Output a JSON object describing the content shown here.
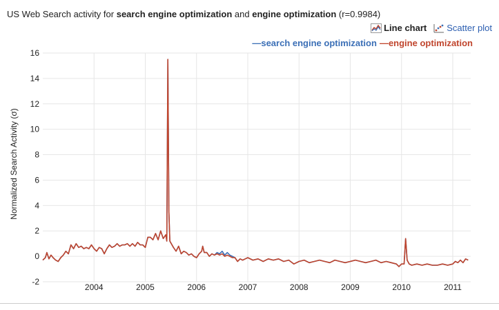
{
  "header": {
    "title_prefix": "US Web Search activity for ",
    "term1": "search engine optimization",
    "title_join": " and ",
    "term2": "engine optimization",
    "title_suffix": " (r=0.9984)"
  },
  "modes": {
    "line_label": "Line chart",
    "scatter_label": "Scatter plot"
  },
  "legend": {
    "series1": "—search engine optimization",
    "series2": "—engine optimization"
  },
  "colors": {
    "series1": "#3b6fb6",
    "series2": "#c0452d",
    "grid": "#e6e6e6"
  },
  "chart_data": {
    "type": "line",
    "title": "US Web Search activity for search engine optimization and engine optimization (r=0.9984)",
    "ylabel": "Normalized Search Activity (σ)",
    "xlabel": "",
    "ylim": [
      -2,
      16
    ],
    "yticks": [
      "-2",
      "0",
      "2",
      "4",
      "6",
      "8",
      "10",
      "12",
      "14",
      "16"
    ],
    "xlim": [
      2003.0,
      2011.35
    ],
    "xticks": [
      {
        "v": 2004,
        "label": "2004"
      },
      {
        "v": 2005,
        "label": "2005"
      },
      {
        "v": 2006,
        "label": "2006"
      },
      {
        "v": 2007,
        "label": "2007"
      },
      {
        "v": 2008,
        "label": "2008"
      },
      {
        "v": 2009,
        "label": "2009"
      },
      {
        "v": 2010,
        "label": "2010"
      },
      {
        "v": 2011,
        "label": "2011"
      }
    ],
    "grid": true,
    "legend_position": "top-right",
    "series": [
      {
        "name": "search engine optimization",
        "points": [
          [
            2003.0,
            -0.3
          ],
          [
            2003.05,
            -0.1
          ],
          [
            2003.08,
            0.3
          ],
          [
            2003.12,
            -0.2
          ],
          [
            2003.16,
            0.1
          ],
          [
            2003.2,
            -0.1
          ],
          [
            2003.25,
            -0.3
          ],
          [
            2003.3,
            -0.4
          ],
          [
            2003.35,
            -0.1
          ],
          [
            2003.4,
            0.1
          ],
          [
            2003.45,
            0.4
          ],
          [
            2003.5,
            0.2
          ],
          [
            2003.55,
            0.9
          ],
          [
            2003.6,
            0.6
          ],
          [
            2003.65,
            1.0
          ],
          [
            2003.7,
            0.7
          ],
          [
            2003.75,
            0.8
          ],
          [
            2003.8,
            0.6
          ],
          [
            2003.85,
            0.7
          ],
          [
            2003.9,
            0.6
          ],
          [
            2003.95,
            0.9
          ],
          [
            2004.0,
            0.6
          ],
          [
            2004.05,
            0.4
          ],
          [
            2004.1,
            0.7
          ],
          [
            2004.15,
            0.6
          ],
          [
            2004.2,
            0.2
          ],
          [
            2004.25,
            0.6
          ],
          [
            2004.3,
            0.9
          ],
          [
            2004.35,
            0.7
          ],
          [
            2004.4,
            0.8
          ],
          [
            2004.45,
            1.0
          ],
          [
            2004.5,
            0.8
          ],
          [
            2004.55,
            0.9
          ],
          [
            2004.6,
            0.9
          ],
          [
            2004.65,
            1.0
          ],
          [
            2004.7,
            0.8
          ],
          [
            2004.75,
            1.0
          ],
          [
            2004.8,
            0.8
          ],
          [
            2004.85,
            1.1
          ],
          [
            2004.9,
            0.9
          ],
          [
            2004.95,
            0.9
          ],
          [
            2005.0,
            0.7
          ],
          [
            2005.05,
            1.5
          ],
          [
            2005.1,
            1.5
          ],
          [
            2005.15,
            1.3
          ],
          [
            2005.2,
            1.8
          ],
          [
            2005.25,
            1.3
          ],
          [
            2005.3,
            2.0
          ],
          [
            2005.35,
            1.4
          ],
          [
            2005.4,
            1.7
          ],
          [
            2005.42,
            1.2
          ],
          [
            2005.44,
            15.5
          ],
          [
            2005.46,
            3.5
          ],
          [
            2005.48,
            1.2
          ],
          [
            2005.55,
            0.7
          ],
          [
            2005.6,
            0.4
          ],
          [
            2005.65,
            0.8
          ],
          [
            2005.7,
            0.2
          ],
          [
            2005.75,
            0.4
          ],
          [
            2005.8,
            0.3
          ],
          [
            2005.85,
            0.1
          ],
          [
            2005.9,
            0.2
          ],
          [
            2005.95,
            0.0
          ],
          [
            2006.0,
            -0.1
          ],
          [
            2006.05,
            0.2
          ],
          [
            2006.1,
            0.4
          ],
          [
            2006.12,
            0.8
          ],
          [
            2006.15,
            0.3
          ],
          [
            2006.2,
            0.3
          ],
          [
            2006.25,
            0.0
          ],
          [
            2006.3,
            0.2
          ],
          [
            2006.35,
            0.1
          ],
          [
            2006.4,
            0.3
          ],
          [
            2006.45,
            0.2
          ],
          [
            2006.5,
            0.4
          ],
          [
            2006.55,
            0.1
          ],
          [
            2006.6,
            0.3
          ],
          [
            2006.65,
            0.1
          ],
          [
            2006.7,
            0.0
          ],
          [
            2006.75,
            -0.1
          ],
          [
            2006.8,
            -0.4
          ],
          [
            2006.85,
            -0.2
          ],
          [
            2006.9,
            -0.3
          ],
          [
            2006.95,
            -0.2
          ],
          [
            2007.0,
            -0.1
          ],
          [
            2007.1,
            -0.3
          ],
          [
            2007.2,
            -0.2
          ],
          [
            2007.3,
            -0.4
          ],
          [
            2007.4,
            -0.2
          ],
          [
            2007.5,
            -0.3
          ],
          [
            2007.6,
            -0.2
          ],
          [
            2007.7,
            -0.4
          ],
          [
            2007.8,
            -0.3
          ],
          [
            2007.9,
            -0.6
          ],
          [
            2008.0,
            -0.4
          ],
          [
            2008.1,
            -0.3
          ],
          [
            2008.2,
            -0.5
          ],
          [
            2008.3,
            -0.4
          ],
          [
            2008.4,
            -0.3
          ],
          [
            2008.5,
            -0.4
          ],
          [
            2008.6,
            -0.5
          ],
          [
            2008.7,
            -0.3
          ],
          [
            2008.8,
            -0.4
          ],
          [
            2008.9,
            -0.5
          ],
          [
            2009.0,
            -0.4
          ],
          [
            2009.1,
            -0.3
          ],
          [
            2009.2,
            -0.4
          ],
          [
            2009.3,
            -0.5
          ],
          [
            2009.4,
            -0.4
          ],
          [
            2009.5,
            -0.3
          ],
          [
            2009.6,
            -0.5
          ],
          [
            2009.7,
            -0.4
          ],
          [
            2009.8,
            -0.5
          ],
          [
            2009.9,
            -0.6
          ],
          [
            2009.95,
            -0.8
          ],
          [
            2010.0,
            -0.6
          ],
          [
            2010.05,
            -0.6
          ],
          [
            2010.08,
            1.4
          ],
          [
            2010.11,
            -0.3
          ],
          [
            2010.15,
            -0.6
          ],
          [
            2010.2,
            -0.7
          ],
          [
            2010.3,
            -0.6
          ],
          [
            2010.4,
            -0.7
          ],
          [
            2010.5,
            -0.6
          ],
          [
            2010.6,
            -0.7
          ],
          [
            2010.7,
            -0.7
          ],
          [
            2010.8,
            -0.6
          ],
          [
            2010.9,
            -0.7
          ],
          [
            2011.0,
            -0.6
          ],
          [
            2011.05,
            -0.4
          ],
          [
            2011.1,
            -0.5
          ],
          [
            2011.15,
            -0.3
          ],
          [
            2011.2,
            -0.5
          ],
          [
            2011.25,
            -0.2
          ],
          [
            2011.3,
            -0.3
          ]
        ]
      },
      {
        "name": "engine optimization",
        "points": [
          [
            2003.0,
            -0.3
          ],
          [
            2003.05,
            -0.1
          ],
          [
            2003.08,
            0.3
          ],
          [
            2003.12,
            -0.2
          ],
          [
            2003.16,
            0.1
          ],
          [
            2003.2,
            -0.1
          ],
          [
            2003.25,
            -0.3
          ],
          [
            2003.3,
            -0.4
          ],
          [
            2003.35,
            -0.1
          ],
          [
            2003.4,
            0.1
          ],
          [
            2003.45,
            0.4
          ],
          [
            2003.5,
            0.2
          ],
          [
            2003.55,
            0.9
          ],
          [
            2003.6,
            0.6
          ],
          [
            2003.65,
            1.0
          ],
          [
            2003.7,
            0.7
          ],
          [
            2003.75,
            0.8
          ],
          [
            2003.8,
            0.6
          ],
          [
            2003.85,
            0.7
          ],
          [
            2003.9,
            0.6
          ],
          [
            2003.95,
            0.9
          ],
          [
            2004.0,
            0.6
          ],
          [
            2004.05,
            0.4
          ],
          [
            2004.1,
            0.7
          ],
          [
            2004.15,
            0.6
          ],
          [
            2004.2,
            0.2
          ],
          [
            2004.25,
            0.6
          ],
          [
            2004.3,
            0.9
          ],
          [
            2004.35,
            0.7
          ],
          [
            2004.4,
            0.8
          ],
          [
            2004.45,
            1.0
          ],
          [
            2004.5,
            0.8
          ],
          [
            2004.55,
            0.9
          ],
          [
            2004.6,
            0.9
          ],
          [
            2004.65,
            1.0
          ],
          [
            2004.7,
            0.8
          ],
          [
            2004.75,
            1.0
          ],
          [
            2004.8,
            0.8
          ],
          [
            2004.85,
            1.1
          ],
          [
            2004.9,
            0.9
          ],
          [
            2004.95,
            0.9
          ],
          [
            2005.0,
            0.7
          ],
          [
            2005.05,
            1.5
          ],
          [
            2005.1,
            1.5
          ],
          [
            2005.15,
            1.3
          ],
          [
            2005.2,
            1.8
          ],
          [
            2005.25,
            1.3
          ],
          [
            2005.3,
            2.0
          ],
          [
            2005.35,
            1.4
          ],
          [
            2005.4,
            1.7
          ],
          [
            2005.42,
            1.2
          ],
          [
            2005.44,
            15.5
          ],
          [
            2005.46,
            3.5
          ],
          [
            2005.48,
            1.2
          ],
          [
            2005.55,
            0.7
          ],
          [
            2005.6,
            0.4
          ],
          [
            2005.65,
            0.8
          ],
          [
            2005.7,
            0.2
          ],
          [
            2005.75,
            0.4
          ],
          [
            2005.8,
            0.3
          ],
          [
            2005.85,
            0.1
          ],
          [
            2005.9,
            0.2
          ],
          [
            2005.95,
            0.0
          ],
          [
            2006.0,
            -0.1
          ],
          [
            2006.05,
            0.2
          ],
          [
            2006.1,
            0.4
          ],
          [
            2006.12,
            0.8
          ],
          [
            2006.15,
            0.3
          ],
          [
            2006.2,
            0.3
          ],
          [
            2006.25,
            0.0
          ],
          [
            2006.3,
            0.2
          ],
          [
            2006.35,
            0.1
          ],
          [
            2006.4,
            0.2
          ],
          [
            2006.45,
            0.1
          ],
          [
            2006.5,
            0.2
          ],
          [
            2006.55,
            0.0
          ],
          [
            2006.6,
            0.1
          ],
          [
            2006.65,
            0.0
          ],
          [
            2006.7,
            -0.1
          ],
          [
            2006.75,
            -0.1
          ],
          [
            2006.8,
            -0.4
          ],
          [
            2006.85,
            -0.2
          ],
          [
            2006.9,
            -0.3
          ],
          [
            2006.95,
            -0.2
          ],
          [
            2007.0,
            -0.1
          ],
          [
            2007.1,
            -0.3
          ],
          [
            2007.2,
            -0.2
          ],
          [
            2007.3,
            -0.4
          ],
          [
            2007.4,
            -0.2
          ],
          [
            2007.5,
            -0.3
          ],
          [
            2007.6,
            -0.2
          ],
          [
            2007.7,
            -0.4
          ],
          [
            2007.8,
            -0.3
          ],
          [
            2007.9,
            -0.6
          ],
          [
            2008.0,
            -0.4
          ],
          [
            2008.1,
            -0.3
          ],
          [
            2008.2,
            -0.5
          ],
          [
            2008.3,
            -0.4
          ],
          [
            2008.4,
            -0.3
          ],
          [
            2008.5,
            -0.4
          ],
          [
            2008.6,
            -0.5
          ],
          [
            2008.7,
            -0.3
          ],
          [
            2008.8,
            -0.4
          ],
          [
            2008.9,
            -0.5
          ],
          [
            2009.0,
            -0.4
          ],
          [
            2009.1,
            -0.3
          ],
          [
            2009.2,
            -0.4
          ],
          [
            2009.3,
            -0.5
          ],
          [
            2009.4,
            -0.4
          ],
          [
            2009.5,
            -0.3
          ],
          [
            2009.6,
            -0.5
          ],
          [
            2009.7,
            -0.4
          ],
          [
            2009.8,
            -0.5
          ],
          [
            2009.9,
            -0.6
          ],
          [
            2009.95,
            -0.8
          ],
          [
            2010.0,
            -0.6
          ],
          [
            2010.05,
            -0.6
          ],
          [
            2010.08,
            1.4
          ],
          [
            2010.11,
            -0.3
          ],
          [
            2010.15,
            -0.6
          ],
          [
            2010.2,
            -0.7
          ],
          [
            2010.3,
            -0.6
          ],
          [
            2010.4,
            -0.7
          ],
          [
            2010.5,
            -0.6
          ],
          [
            2010.6,
            -0.7
          ],
          [
            2010.7,
            -0.7
          ],
          [
            2010.8,
            -0.6
          ],
          [
            2010.9,
            -0.7
          ],
          [
            2011.0,
            -0.6
          ],
          [
            2011.05,
            -0.4
          ],
          [
            2011.1,
            -0.5
          ],
          [
            2011.15,
            -0.3
          ],
          [
            2011.2,
            -0.5
          ],
          [
            2011.25,
            -0.2
          ],
          [
            2011.3,
            -0.3
          ]
        ]
      }
    ]
  }
}
